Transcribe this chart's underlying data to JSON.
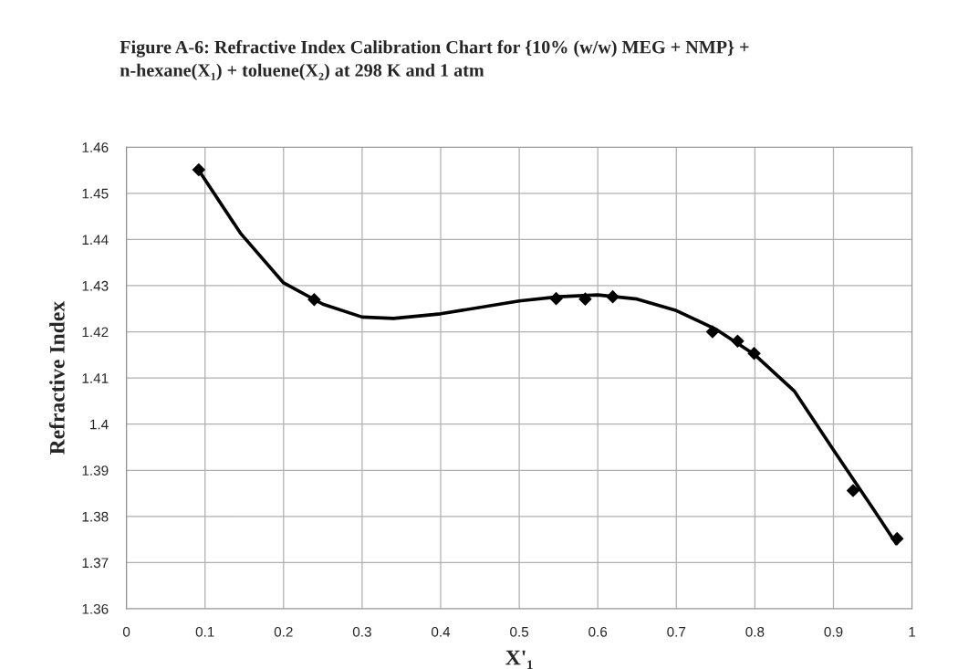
{
  "chart_data": {
    "type": "scatter",
    "title": "Figure A-6: Refractive Index Calibration Chart for {10% (w/w) MEG + NMP} +\nn-hexane(X₁) + toluene(X₂) at 298 K and 1 atm",
    "xlabel": "X'₁",
    "ylabel": "Refractive Index",
    "series": [
      {
        "color": "#000000",
        "marker": "diamond",
        "x": [
          0.092,
          0.239,
          0.547,
          0.584,
          0.619,
          0.746,
          0.778,
          0.799,
          0.925,
          0.981
        ],
        "values": [
          1.4551,
          1.427,
          1.4272,
          1.4271,
          1.4276,
          1.42,
          1.418,
          1.4153,
          1.3856,
          1.3752
        ]
      },
      {
        "type": "line",
        "color": "#000000",
        "marker": "none",
        "line_style": "solid",
        "x": [
          0.092,
          0.145,
          0.2,
          0.25,
          0.3,
          0.34,
          0.4,
          0.5,
          0.55,
          0.6,
          0.65,
          0.7,
          0.75,
          0.8,
          0.85,
          0.9,
          0.95,
          0.98
        ],
        "values": [
          1.455,
          1.4414,
          1.4306,
          1.426,
          1.4232,
          1.4229,
          1.4239,
          1.4267,
          1.4276,
          1.428,
          1.4271,
          1.4246,
          1.4206,
          1.415,
          1.4072,
          1.3944,
          1.3818,
          1.3741
        ]
      }
    ],
    "xlim": [
      0,
      1
    ],
    "xticks": [
      0,
      0.1,
      0.2,
      0.3,
      0.4,
      0.5,
      0.6,
      0.7,
      0.8,
      0.9,
      1
    ],
    "ylim": [
      1.36,
      1.46
    ],
    "yticks": [
      1.36,
      1.37,
      1.38,
      1.39,
      1.4,
      1.41,
      1.42,
      1.43,
      1.44,
      1.45,
      1.46
    ],
    "grid": true
  }
}
